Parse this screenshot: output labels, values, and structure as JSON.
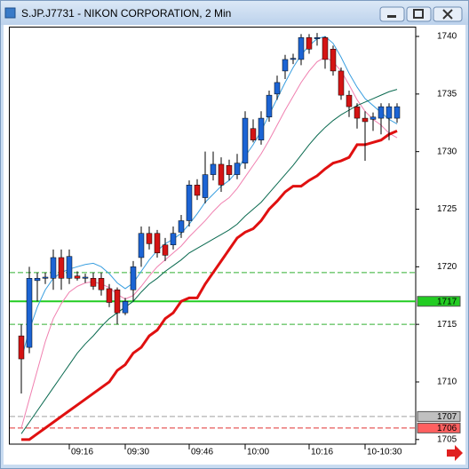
{
  "window": {
    "title": "S.JP.J7731 - NIKON CORPORATION, 2 Min"
  },
  "chart_data": {
    "type": "candlestick",
    "categories": [
      null,
      null,
      null,
      null,
      null,
      null,
      "09:16",
      null,
      null,
      null,
      null,
      null,
      null,
      "09:30",
      null,
      null,
      null,
      null,
      null,
      null,
      null,
      "09:46",
      null,
      null,
      null,
      null,
      null,
      null,
      "10:00",
      null,
      null,
      null,
      null,
      null,
      null,
      null,
      "10:16",
      null,
      null,
      null,
      null,
      null,
      null,
      "10-10:30",
      null,
      null,
      null,
      null
    ],
    "open": [
      1714,
      1713,
      1718.8,
      1719,
      1719,
      1720.8,
      1719,
      1719.2,
      1719,
      1719,
      1719,
      1718.1,
      1718,
      1716,
      1718,
      1720.8,
      1722.9,
      1722.9,
      1721.9,
      1721.9,
      1723,
      1724,
      1727.1,
      1726,
      1728,
      1728.9,
      1728.8,
      1728,
      1729,
      1732,
      1731,
      1733,
      1735,
      1737,
      1738,
      1738,
      1739.9,
      1739.8,
      1739.9,
      1738.9,
      1737,
      1734.9,
      1733.9,
      1732.9,
      1732.8,
      1732.9,
      1732.9,
      1732.9
    ],
    "high": [
      1715,
      1720,
      1719.5,
      1719.5,
      1721.5,
      1721.5,
      1721.5,
      1719.6,
      1719.4,
      1719.5,
      1719.5,
      1718.5,
      1718.2,
      1717.3,
      1720.5,
      1723.5,
      1723.5,
      1723.2,
      1722.5,
      1723.5,
      1724.5,
      1727.5,
      1727.6,
      1730,
      1730,
      1729.5,
      1729.3,
      1729.8,
      1733.5,
      1732.8,
      1733.5,
      1735.3,
      1736.6,
      1738.4,
      1738.5,
      1740.2,
      1740.2,
      1740.3,
      1740,
      1739.2,
      1737.3,
      1735.3,
      1734.2,
      1733.5,
      1733.4,
      1734.2,
      1734.2,
      1734.2
    ],
    "low": [
      1709,
      1712.5,
      1717,
      1718.5,
      1718,
      1718,
      1718.5,
      1718.8,
      1718.6,
      1718,
      1717.5,
      1716.5,
      1715,
      1715.8,
      1717,
      1720,
      1721.5,
      1720.8,
      1720.5,
      1721.5,
      1722.5,
      1723.5,
      1725.8,
      1725.5,
      1727.5,
      1726.5,
      1727.5,
      1727.6,
      1728.5,
      1730.8,
      1730.6,
      1732.6,
      1734.5,
      1736.3,
      1737.6,
      1737.5,
      1738.5,
      1739.2,
      1737.2,
      1736.6,
      1734.5,
      1733,
      1732,
      1729.2,
      1731.8,
      1731.5,
      1731,
      1732.5
    ],
    "close": [
      1712,
      1719,
      1719,
      1719.1,
      1720.8,
      1719,
      1720.9,
      1719,
      1719.1,
      1718.3,
      1718,
      1716.9,
      1716,
      1717,
      1720,
      1722.9,
      1722,
      1721.2,
      1721,
      1722.9,
      1724,
      1727.1,
      1726.2,
      1728,
      1728.9,
      1727.1,
      1728,
      1729,
      1732.9,
      1731,
      1732.9,
      1734.9,
      1736,
      1738,
      1738.1,
      1739.9,
      1738.9,
      1739.9,
      1738,
      1737,
      1734.9,
      1733.9,
      1732.9,
      1732.6,
      1733,
      1733.9,
      1733.9,
      1733.9
    ],
    "up_color": "#1c64d4",
    "down_color": "#d41414",
    "series": [
      {
        "color": "#3a9fe0",
        "width": 1,
        "values": [
          1712,
          1714.5,
          1716.5,
          1718,
          1719,
          1719.5,
          1719.8,
          1720,
          1720.2,
          1720.3,
          1720,
          1719.4,
          1718.6,
          1718.1,
          1718.6,
          1719.6,
          1720.6,
          1721.4,
          1722,
          1722.4,
          1722.9,
          1723.7,
          1724.6,
          1725.6,
          1726.3,
          1727,
          1727.5,
          1728.3,
          1729.6,
          1730.6,
          1731.8,
          1733.2,
          1734.6,
          1736,
          1737.3,
          1738.4,
          1739.2,
          1739.8,
          1740,
          1739.4,
          1738.2,
          1736.8,
          1735.6,
          1734.6,
          1734,
          1733.4,
          1732.8,
          1732.4
        ]
      },
      {
        "color": "#f080b0",
        "width": 1,
        "values": [
          1706,
          1708.5,
          1711,
          1713.5,
          1715.5,
          1716.8,
          1717.8,
          1718.3,
          1718.6,
          1718.7,
          1718.5,
          1718.2,
          1717.6,
          1717.2,
          1717.5,
          1718.3,
          1719.2,
          1720,
          1720.6,
          1721.2,
          1721.8,
          1722.6,
          1723.3,
          1724,
          1724.8,
          1725.5,
          1726,
          1726.8,
          1727.8,
          1728.8,
          1729.8,
          1731,
          1732.3,
          1733.6,
          1734.8,
          1736,
          1737,
          1737.8,
          1738.2,
          1737.8,
          1737,
          1735.8,
          1734.5,
          1733.5,
          1732.8,
          1732.3,
          1731.6,
          1731.2
        ]
      },
      {
        "color": "#0a6a50",
        "width": 1,
        "values": [
          1705.5,
          1706.5,
          1707.5,
          1708.5,
          1709.5,
          1710.5,
          1711.5,
          1712.5,
          1713.3,
          1714,
          1714.8,
          1715.5,
          1716,
          1716.5,
          1717,
          1717.8,
          1718.5,
          1719,
          1719.6,
          1720.1,
          1720.6,
          1721.2,
          1721.6,
          1722,
          1722.4,
          1722.8,
          1723.2,
          1723.7,
          1724.4,
          1725,
          1725.6,
          1726.4,
          1727.2,
          1728,
          1728.8,
          1729.7,
          1730.6,
          1731.4,
          1732.1,
          1732.7,
          1733.2,
          1733.6,
          1734,
          1734.3,
          1734.6,
          1734.9,
          1735.2,
          1735.4
        ]
      },
      {
        "color": "#e01010",
        "width": 3,
        "values": [
          1705,
          1705,
          1705.5,
          1706,
          1706.5,
          1707,
          1707.5,
          1708,
          1708.5,
          1709,
          1709.5,
          1710,
          1711,
          1711.5,
          1712.5,
          1713,
          1714,
          1714.5,
          1715.5,
          1716,
          1717,
          1717.3,
          1717.3,
          1718.5,
          1719.5,
          1720.5,
          1721.5,
          1722.5,
          1723,
          1723.3,
          1724,
          1725,
          1725.7,
          1726.5,
          1727,
          1727,
          1727.5,
          1727.9,
          1728.5,
          1729,
          1729.2,
          1729.5,
          1730.6,
          1730.6,
          1730.8,
          1731,
          1731.5,
          1731.8
        ]
      }
    ],
    "levels": [
      {
        "value": 1719.5,
        "color": "#30b030",
        "style": "dashed"
      },
      {
        "value": 1717,
        "color": "#22cc22",
        "style": "solid",
        "tag_color": "#22cc22"
      },
      {
        "value": 1715,
        "color": "#30b030",
        "style": "dashed"
      },
      {
        "value": 1707,
        "color": "#a0a0a0",
        "style": "dashed",
        "tag_color": "#c0c0c0"
      },
      {
        "value": 1706,
        "color": "#e03030",
        "style": "dashed",
        "tag_color": "#ff6060"
      }
    ],
    "ylim": [
      1704.6,
      1740.85
    ],
    "yticks": [
      1705,
      1710,
      1715,
      1720,
      1725,
      1730,
      1735,
      1740
    ]
  }
}
